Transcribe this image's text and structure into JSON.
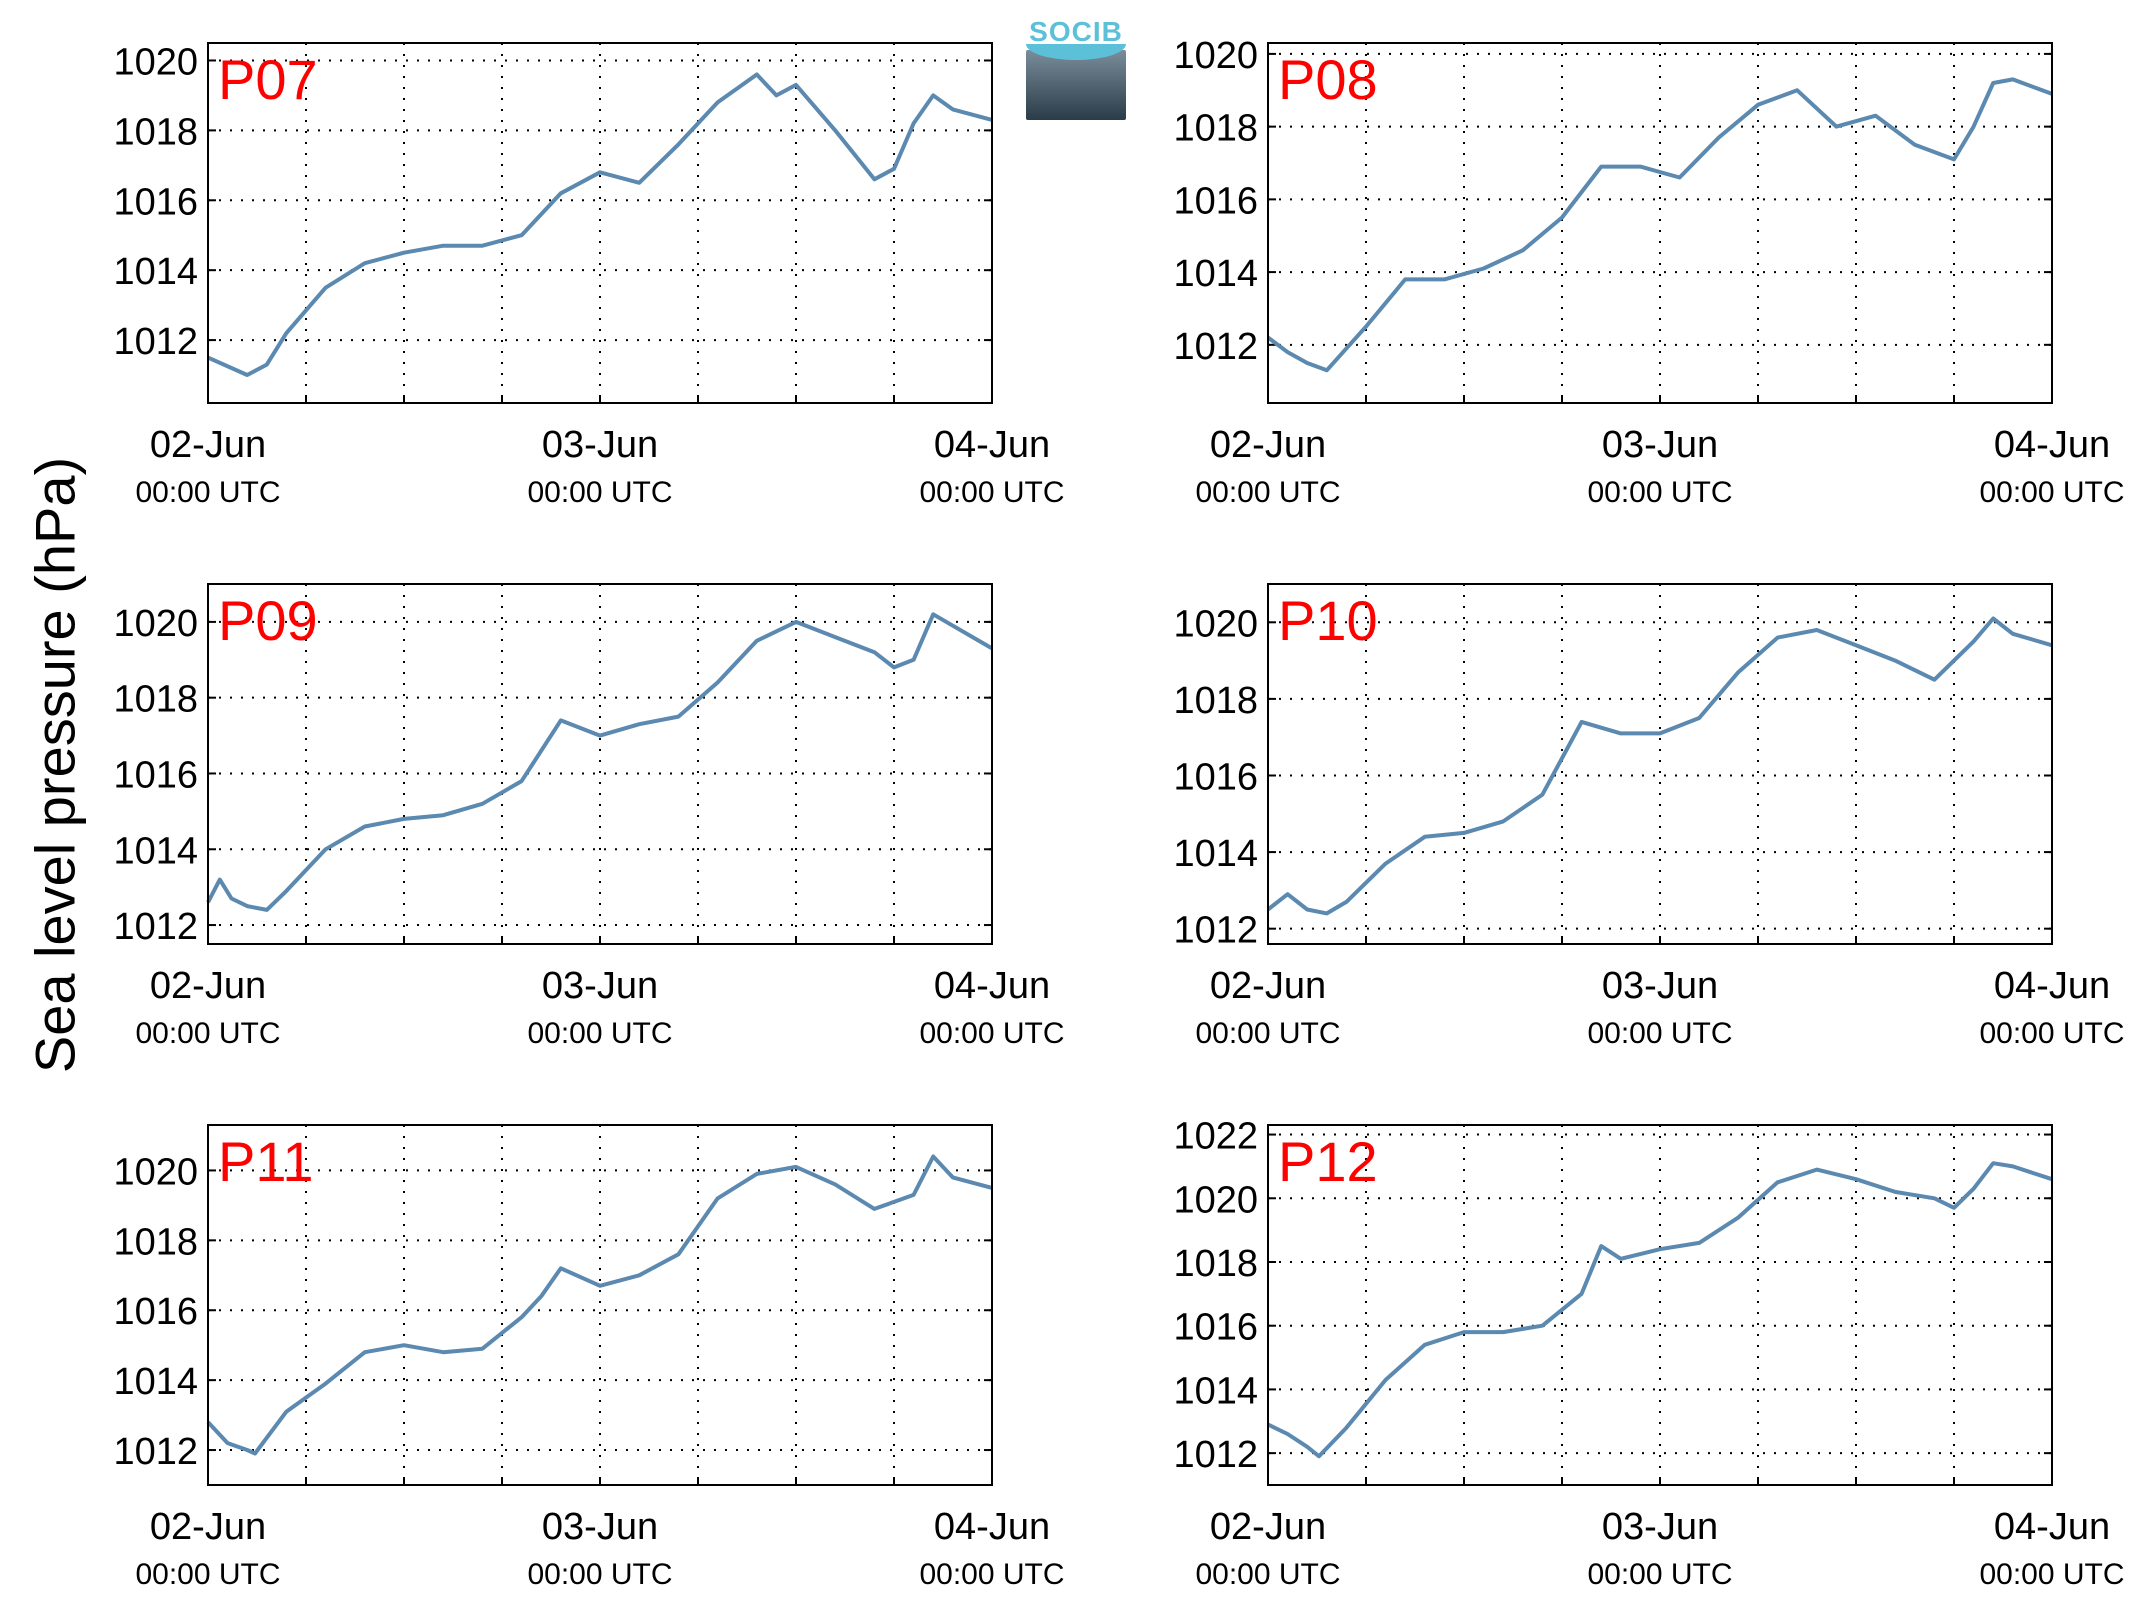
{
  "figure": {
    "ylabel": "Sea level pressure (hPa)",
    "logo_text": "SOCIB",
    "line_color": "#5b89b0",
    "station_label_color": "#ff0000"
  },
  "chart_data": [
    {
      "type": "line",
      "station": "P07",
      "xlim": [
        0,
        2
      ],
      "ylim": [
        1010.2,
        1020.5
      ],
      "yticks": [
        1012,
        1014,
        1016,
        1018,
        1020
      ],
      "xtick_labels": [
        {
          "date": "02-Jun",
          "time": "00:00 UTC"
        },
        {
          "date": "03-Jun",
          "time": "00:00 UTC"
        },
        {
          "date": "04-Jun",
          "time": "00:00 UTC"
        }
      ],
      "grid": true,
      "x": [
        0,
        0.1,
        0.15,
        0.2,
        0.3,
        0.4,
        0.5,
        0.6,
        0.7,
        0.8,
        0.9,
        1.0,
        1.1,
        1.2,
        1.3,
        1.4,
        1.45,
        1.5,
        1.6,
        1.7,
        1.75,
        1.8,
        1.85,
        1.9,
        2.0
      ],
      "y": [
        1011.5,
        1011.0,
        1011.3,
        1012.2,
        1013.5,
        1014.2,
        1014.5,
        1014.7,
        1014.7,
        1015.0,
        1016.2,
        1016.8,
        1016.5,
        1017.6,
        1018.8,
        1019.6,
        1019.0,
        1019.3,
        1018.0,
        1016.6,
        1016.9,
        1018.2,
        1019.0,
        1018.6,
        1018.3
      ]
    },
    {
      "type": "line",
      "station": "P08",
      "xlim": [
        0,
        2
      ],
      "ylim": [
        1010.4,
        1020.3
      ],
      "yticks": [
        1012,
        1014,
        1016,
        1018,
        1020
      ],
      "xtick_labels": [
        {
          "date": "02-Jun",
          "time": "00:00 UTC"
        },
        {
          "date": "03-Jun",
          "time": "00:00 UTC"
        },
        {
          "date": "04-Jun",
          "time": "00:00 UTC"
        }
      ],
      "grid": true,
      "x": [
        0,
        0.05,
        0.1,
        0.15,
        0.25,
        0.35,
        0.45,
        0.55,
        0.65,
        0.75,
        0.85,
        0.95,
        1.05,
        1.15,
        1.25,
        1.35,
        1.45,
        1.55,
        1.65,
        1.75,
        1.8,
        1.85,
        1.9,
        2.0
      ],
      "y": [
        1012.2,
        1011.8,
        1011.5,
        1011.3,
        1012.5,
        1013.8,
        1013.8,
        1014.1,
        1014.6,
        1015.5,
        1016.9,
        1016.9,
        1016.6,
        1017.7,
        1018.6,
        1019.0,
        1018.0,
        1018.3,
        1017.5,
        1017.1,
        1018.0,
        1019.2,
        1019.3,
        1018.9
      ]
    },
    {
      "type": "line",
      "station": "P09",
      "xlim": [
        0,
        2
      ],
      "ylim": [
        1011.5,
        1021.0
      ],
      "yticks": [
        1012,
        1014,
        1016,
        1018,
        1020
      ],
      "xtick_labels": [
        {
          "date": "02-Jun",
          "time": "00:00 UTC"
        },
        {
          "date": "03-Jun",
          "time": "00:00 UTC"
        },
        {
          "date": "04-Jun",
          "time": "00:00 UTC"
        }
      ],
      "grid": true,
      "x": [
        0,
        0.03,
        0.06,
        0.1,
        0.15,
        0.2,
        0.3,
        0.4,
        0.5,
        0.6,
        0.7,
        0.8,
        0.9,
        1.0,
        1.1,
        1.2,
        1.3,
        1.4,
        1.5,
        1.6,
        1.7,
        1.75,
        1.8,
        1.85,
        2.0
      ],
      "y": [
        1012.6,
        1013.2,
        1012.7,
        1012.5,
        1012.4,
        1012.9,
        1014.0,
        1014.6,
        1014.8,
        1014.9,
        1015.2,
        1015.8,
        1017.4,
        1017.0,
        1017.3,
        1017.5,
        1018.4,
        1019.5,
        1020.0,
        1019.6,
        1019.2,
        1018.8,
        1019.0,
        1020.2,
        1019.3
      ]
    },
    {
      "type": "line",
      "station": "P10",
      "xlim": [
        0,
        2
      ],
      "ylim": [
        1011.6,
        1021.0
      ],
      "yticks": [
        1012,
        1014,
        1016,
        1018,
        1020
      ],
      "xtick_labels": [
        {
          "date": "02-Jun",
          "time": "00:00 UTC"
        },
        {
          "date": "03-Jun",
          "time": "00:00 UTC"
        },
        {
          "date": "04-Jun",
          "time": "00:00 UTC"
        }
      ],
      "grid": true,
      "x": [
        0,
        0.05,
        0.1,
        0.15,
        0.2,
        0.3,
        0.4,
        0.5,
        0.6,
        0.7,
        0.8,
        0.9,
        1.0,
        1.1,
        1.2,
        1.3,
        1.4,
        1.5,
        1.6,
        1.7,
        1.75,
        1.8,
        1.85,
        1.9,
        2.0
      ],
      "y": [
        1012.5,
        1012.9,
        1012.5,
        1012.4,
        1012.7,
        1013.7,
        1014.4,
        1014.5,
        1014.8,
        1015.5,
        1017.4,
        1017.1,
        1017.1,
        1017.5,
        1018.7,
        1019.6,
        1019.8,
        1019.4,
        1019.0,
        1018.5,
        1019.0,
        1019.5,
        1020.1,
        1019.7,
        1019.4
      ]
    },
    {
      "type": "line",
      "station": "P11",
      "xlim": [
        0,
        2
      ],
      "ylim": [
        1011.0,
        1021.3
      ],
      "yticks": [
        1012,
        1014,
        1016,
        1018,
        1020
      ],
      "xtick_labels": [
        {
          "date": "02-Jun",
          "time": "00:00 UTC"
        },
        {
          "date": "03-Jun",
          "time": "00:00 UTC"
        },
        {
          "date": "04-Jun",
          "time": "00:00 UTC"
        }
      ],
      "grid": true,
      "x": [
        0,
        0.05,
        0.1,
        0.12,
        0.2,
        0.3,
        0.4,
        0.5,
        0.6,
        0.7,
        0.8,
        0.85,
        0.9,
        1.0,
        1.1,
        1.2,
        1.3,
        1.4,
        1.5,
        1.6,
        1.7,
        1.75,
        1.8,
        1.85,
        1.9,
        2.0
      ],
      "y": [
        1012.8,
        1012.2,
        1012.0,
        1011.9,
        1013.1,
        1013.9,
        1014.8,
        1015.0,
        1014.8,
        1014.9,
        1015.8,
        1016.4,
        1017.2,
        1016.7,
        1017.0,
        1017.6,
        1019.2,
        1019.9,
        1020.1,
        1019.6,
        1018.9,
        1019.1,
        1019.3,
        1020.4,
        1019.8,
        1019.5
      ]
    },
    {
      "type": "line",
      "station": "P12",
      "xlim": [
        0,
        2
      ],
      "ylim": [
        1011.0,
        1022.3
      ],
      "yticks": [
        1012,
        1014,
        1016,
        1018,
        1020,
        1022
      ],
      "xtick_labels": [
        {
          "date": "02-Jun",
          "time": "00:00 UTC"
        },
        {
          "date": "03-Jun",
          "time": "00:00 UTC"
        },
        {
          "date": "04-Jun",
          "time": "00:00 UTC"
        }
      ],
      "grid": true,
      "x": [
        0,
        0.05,
        0.1,
        0.13,
        0.2,
        0.3,
        0.4,
        0.5,
        0.6,
        0.7,
        0.8,
        0.85,
        0.9,
        1.0,
        1.1,
        1.2,
        1.3,
        1.4,
        1.5,
        1.6,
        1.7,
        1.75,
        1.8,
        1.85,
        1.9,
        2.0
      ],
      "y": [
        1012.9,
        1012.6,
        1012.2,
        1011.9,
        1012.8,
        1014.3,
        1015.4,
        1015.8,
        1015.8,
        1016.0,
        1017.0,
        1018.5,
        1018.1,
        1018.4,
        1018.6,
        1019.4,
        1020.5,
        1020.9,
        1020.6,
        1020.2,
        1020.0,
        1019.7,
        1020.3,
        1021.1,
        1021.0,
        1020.6
      ]
    }
  ]
}
